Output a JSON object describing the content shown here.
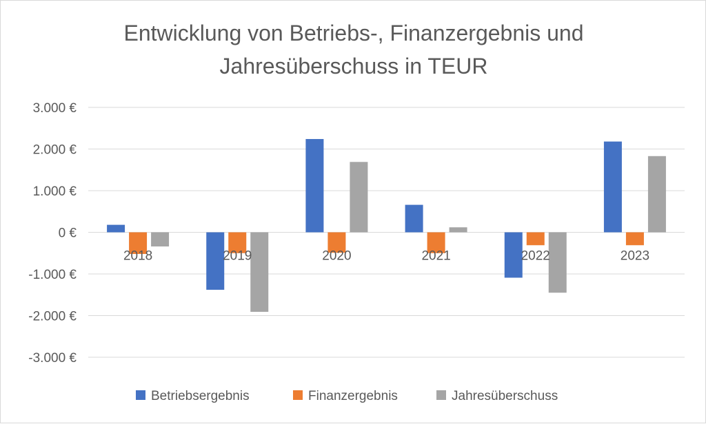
{
  "chart_data": {
    "type": "bar",
    "title_lines": [
      "Entwicklung von Betriebs-, Finanzergebnis und",
      "Jahresüberschuss in TEUR"
    ],
    "categories": [
      "2018",
      "2019",
      "2020",
      "2021",
      "2022",
      "2023"
    ],
    "series": [
      {
        "name": "Betriebsergebnis",
        "color": "#4472C4",
        "values": [
          180,
          -1380,
          2240,
          660,
          -1090,
          2180
        ]
      },
      {
        "name": "Finanzergebnis",
        "color": "#ED7D31",
        "values": [
          -520,
          -500,
          -490,
          -500,
          -310,
          -310
        ]
      },
      {
        "name": "Jahresüberschuss",
        "color": "#A5A5A5",
        "values": [
          -340,
          -1910,
          1690,
          120,
          -1450,
          1830
        ]
      }
    ],
    "y_ticks": [
      3000,
      2000,
      1000,
      0,
      -1000,
      -2000,
      -3000
    ],
    "y_tick_labels": [
      "3.000 €",
      "2.000 €",
      "1.000 €",
      "0 €",
      "-1.000 €",
      "-2.000 €",
      "-3.000 €"
    ],
    "ylim": [
      -3000,
      3000
    ],
    "xlabel": "",
    "ylabel": "",
    "grid": true,
    "legend_position": "bottom"
  }
}
